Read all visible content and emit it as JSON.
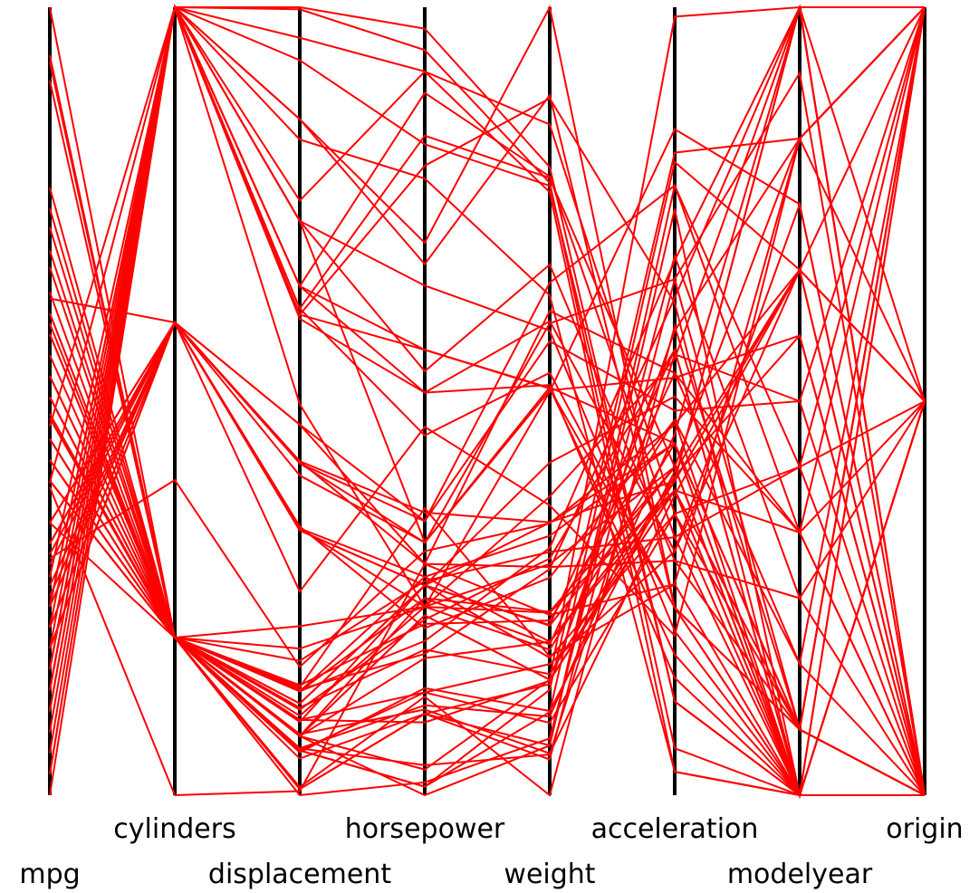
{
  "chart_data": {
    "type": "parallel",
    "color": "#ff0000",
    "dimensions": [
      {
        "name": "mpg",
        "lim": [
          9,
          46.6
        ]
      },
      {
        "name": "cylinders",
        "lim": [
          3,
          8
        ]
      },
      {
        "name": "displacement",
        "lim": [
          68,
          455
        ]
      },
      {
        "name": "horsepower",
        "lim": [
          46,
          230
        ]
      },
      {
        "name": "weight",
        "lim": [
          1613,
          5140
        ]
      },
      {
        "name": "acceleration",
        "lim": [
          8,
          24.8
        ]
      },
      {
        "name": "modelyear",
        "lim": [
          70,
          82
        ]
      },
      {
        "name": "origin",
        "lim": [
          1,
          3
        ]
      }
    ],
    "rows": [
      [
        18,
        8,
        307,
        130,
        3504,
        12,
        70,
        1
      ],
      [
        15,
        8,
        350,
        165,
        3693,
        11.5,
        70,
        1
      ],
      [
        18,
        8,
        318,
        150,
        3436,
        11,
        70,
        1
      ],
      [
        16,
        8,
        304,
        150,
        3433,
        12,
        70,
        1
      ],
      [
        17,
        8,
        302,
        140,
        3449,
        10.5,
        70,
        1
      ],
      [
        15,
        8,
        429,
        198,
        4341,
        10,
        70,
        1
      ],
      [
        14,
        8,
        454,
        220,
        4354,
        9,
        70,
        1
      ],
      [
        14,
        8,
        440,
        215,
        4312,
        8.5,
        70,
        1
      ],
      [
        14,
        8,
        455,
        225,
        4425,
        10,
        70,
        1
      ],
      [
        15,
        8,
        390,
        190,
        3850,
        8.5,
        70,
        1
      ],
      [
        24,
        4,
        113,
        95,
        2372,
        15,
        70,
        3
      ],
      [
        22,
        6,
        198,
        95,
        2833,
        15.5,
        70,
        1
      ],
      [
        18,
        6,
        199,
        97,
        2774,
        15.5,
        70,
        1
      ],
      [
        21,
        6,
        200,
        85,
        2587,
        16,
        70,
        1
      ],
      [
        27,
        4,
        97,
        88,
        2130,
        14.5,
        70,
        3
      ],
      [
        26,
        4,
        97,
        46,
        1835,
        20.5,
        70,
        2
      ],
      [
        25,
        4,
        110,
        87,
        2672,
        17.5,
        70,
        2
      ],
      [
        24,
        4,
        107,
        90,
        2430,
        14.5,
        70,
        2
      ],
      [
        25,
        4,
        104,
        95,
        2375,
        17.5,
        70,
        2
      ],
      [
        26,
        4,
        121,
        113,
        2234,
        12.5,
        70,
        2
      ],
      [
        21,
        6,
        199,
        90,
        2648,
        15,
        70,
        1
      ],
      [
        10,
        8,
        360,
        215,
        4615,
        14,
        70,
        1
      ],
      [
        10,
        8,
        307,
        200,
        4376,
        15,
        70,
        1
      ],
      [
        11,
        8,
        318,
        210,
        4382,
        13.5,
        70,
        1
      ],
      [
        9,
        8,
        304,
        193,
        4732,
        18.5,
        70,
        1
      ],
      [
        27,
        4,
        97,
        88,
        2130,
        14.5,
        71,
        3
      ],
      [
        28,
        4,
        140,
        90,
        2264,
        15.5,
        71,
        1
      ],
      [
        25,
        4,
        113,
        95,
        2228,
        14,
        71,
        3
      ],
      [
        19,
        6,
        232,
        100,
        2634,
        13,
        71,
        1
      ],
      [
        16,
        6,
        225,
        105,
        3439,
        15.5,
        71,
        1
      ],
      [
        31,
        4,
        71,
        65,
        1773,
        19,
        71,
        3
      ],
      [
        35,
        4,
        72,
        69,
        1613,
        18,
        71,
        3
      ],
      [
        13,
        8,
        400,
        170,
        4746,
        12,
        71,
        1
      ],
      [
        12,
        8,
        400,
        175,
        5140,
        12,
        71,
        1
      ],
      [
        22,
        4,
        122,
        86,
        2395,
        16,
        72,
        1
      ],
      [
        28,
        4,
        97,
        92,
        2288,
        17,
        72,
        3
      ],
      [
        13,
        8,
        350,
        145,
        3988,
        13,
        73,
        1
      ],
      [
        20,
        6,
        198,
        95,
        3102,
        16.5,
        74,
        1
      ],
      [
        29,
        4,
        68,
        49,
        1867,
        19.5,
        73,
        2
      ],
      [
        26,
        4,
        97,
        78,
        2300,
        14.5,
        74,
        2
      ],
      [
        32,
        4,
        71,
        65,
        1836,
        21,
        74,
        3
      ],
      [
        16,
        6,
        250,
        100,
        3781,
        17,
        74,
        1
      ],
      [
        24,
        4,
        134,
        96,
        2702,
        13.5,
        75,
        3
      ],
      [
        29,
        4,
        90,
        70,
        1937,
        14,
        75,
        2
      ],
      [
        17,
        6,
        231,
        110,
        3907,
        21,
        75,
        1
      ],
      [
        18.5,
        6,
        250,
        110,
        3645,
        16.2,
        76,
        1
      ],
      [
        33,
        4,
        91,
        53,
        1795,
        17.4,
        76,
        3
      ],
      [
        30,
        4,
        111,
        80,
        2155,
        14.8,
        77,
        1
      ],
      [
        20.5,
        6,
        231,
        105,
        3425,
        16.9,
        77,
        1
      ],
      [
        36.1,
        4,
        98,
        66,
        1800,
        14.4,
        78,
        1
      ],
      [
        19.4,
        8,
        318,
        140,
        3735,
        13.2,
        78,
        1
      ],
      [
        20.3,
        5,
        131,
        103,
        2830,
        15.9,
        78,
        2
      ],
      [
        31.5,
        4,
        89,
        71,
        1990,
        14.9,
        78,
        2
      ],
      [
        43.1,
        4,
        90,
        48,
        1985,
        21.5,
        78,
        2
      ],
      [
        23.9,
        8,
        260,
        90,
        3420,
        22.2,
        79,
        1
      ],
      [
        34.2,
        4,
        105,
        70,
        2200,
        13.2,
        79,
        1
      ],
      [
        27.2,
        4,
        119,
        97,
        2300,
        14.7,
        78,
        3
      ],
      [
        44.3,
        4,
        90,
        48,
        2085,
        21.7,
        80,
        2
      ],
      [
        46.6,
        4,
        86,
        65,
        2110,
        17.9,
        80,
        3
      ],
      [
        23.7,
        3,
        70,
        100,
        2420,
        12.5,
        80,
        3
      ],
      [
        32.7,
        6,
        168,
        132,
        2910,
        11.4,
        80,
        3
      ],
      [
        37,
        4,
        119,
        92,
        2434,
        15,
        80,
        3
      ],
      [
        26.6,
        8,
        350,
        105,
        3725,
        19,
        81,
        1
      ],
      [
        32,
        4,
        91,
        67,
        1965,
        15.7,
        82,
        3
      ],
      [
        44,
        4,
        97,
        52,
        2130,
        24.6,
        82,
        2
      ],
      [
        27,
        4,
        151,
        90,
        2950,
        17.3,
        82,
        1
      ],
      [
        28,
        4,
        120,
        79,
        2625,
        18.6,
        82,
        1
      ],
      [
        31,
        4,
        119,
        82,
        2720,
        19.4,
        82,
        1
      ],
      [
        22,
        6,
        232,
        112,
        2835,
        14.7,
        82,
        1
      ],
      [
        38,
        4,
        105,
        63,
        2125,
        14.7,
        82,
        1
      ]
    ]
  }
}
